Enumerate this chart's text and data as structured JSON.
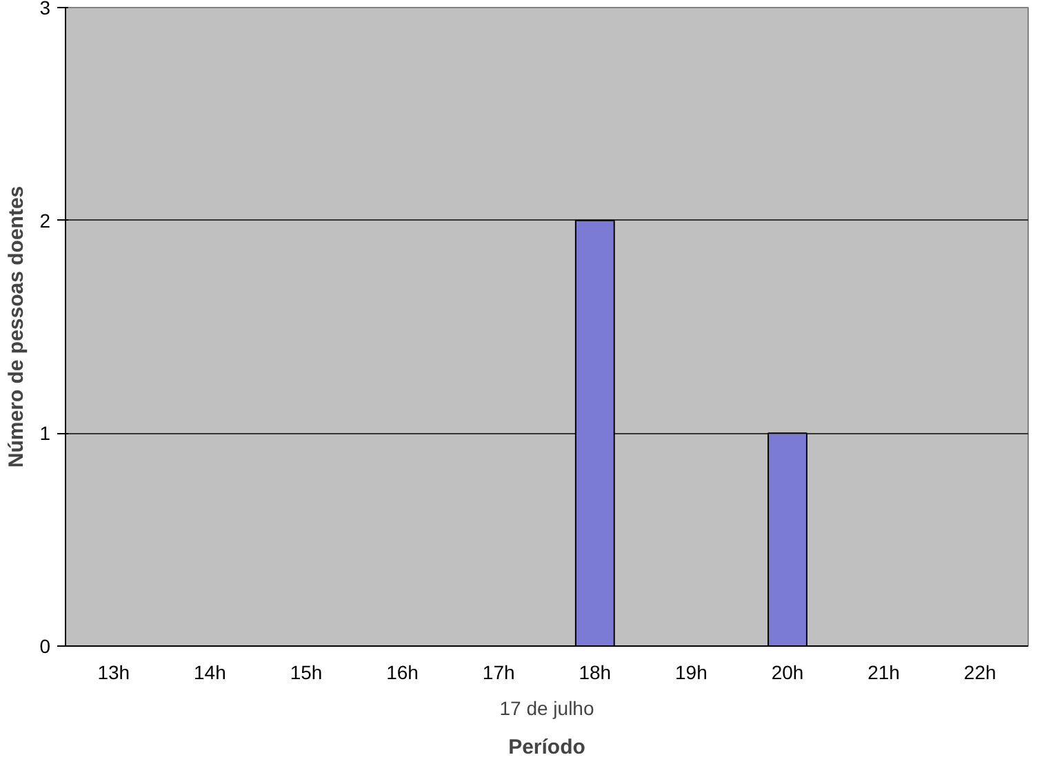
{
  "chart_data": {
    "type": "bar",
    "xlabel": "Período",
    "ylabel": "Número de pessoas doentes",
    "categories": [
      "13h",
      "14h",
      "15h",
      "16h",
      "17h",
      "18h",
      "19h",
      "20h",
      "21h",
      "22h"
    ],
    "values": [
      0,
      0,
      0,
      0,
      0,
      2,
      0,
      1,
      0,
      0
    ],
    "color": "#7b7bd6",
    "ylim": [
      0,
      3
    ],
    "yticks": [
      0,
      1,
      2,
      3
    ],
    "grid": "y",
    "annotations": [
      "17 de julho"
    ]
  }
}
